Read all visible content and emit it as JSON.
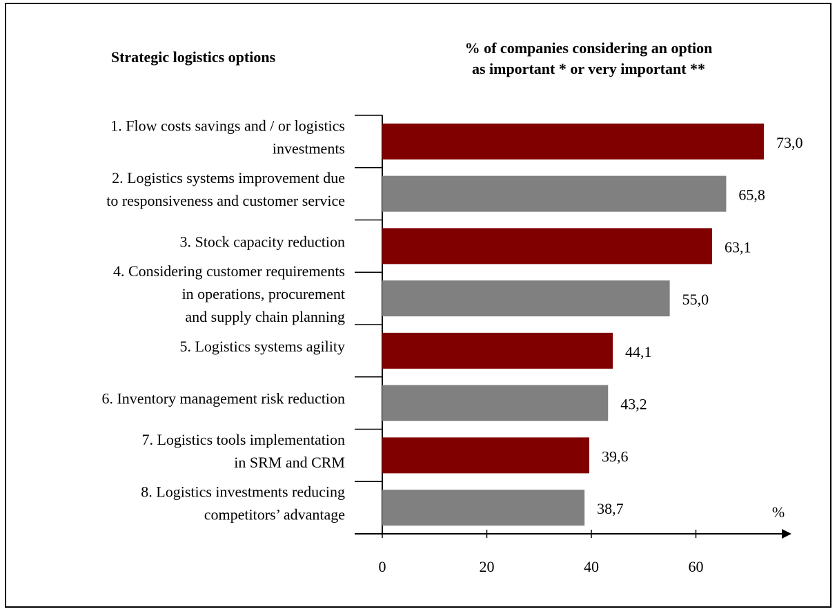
{
  "chart_data": {
    "type": "bar",
    "orientation": "horizontal",
    "title": "Strategic logistics options",
    "subtitle": [
      "% of companies considering an option",
      "as important * or very important **"
    ],
    "categories": [
      [
        "1. Flow costs savings and / or logistics",
        "investments"
      ],
      [
        "2. Logistics systems improvement due",
        "to responsiveness and customer service"
      ],
      [
        "3. Stock capacity reduction"
      ],
      [
        "4. Considering customer requirements",
        "in operations, procurement",
        "and supply chain planning"
      ],
      [
        "5. Logistics systems agility"
      ],
      [
        "6. Inventory management risk reduction"
      ],
      [
        "7. Logistics tools implementation",
        "in SRM and CRM"
      ],
      [
        "8. Logistics investments reducing",
        "competitors’ advantage"
      ]
    ],
    "values": [
      73.0,
      65.8,
      63.1,
      55.0,
      44.1,
      43.2,
      39.6,
      38.7
    ],
    "value_labels": [
      "73,0",
      "65,8",
      "63,1",
      "55,0",
      "44,1",
      "43,2",
      "39,6",
      "38,7"
    ],
    "colors": [
      "#800000",
      "#808080",
      "#800000",
      "#808080",
      "#800000",
      "#808080",
      "#800000",
      "#808080"
    ],
    "xlabel": "%",
    "xlim": [
      0,
      78
    ],
    "xticks": [
      0,
      20,
      40,
      60
    ]
  }
}
